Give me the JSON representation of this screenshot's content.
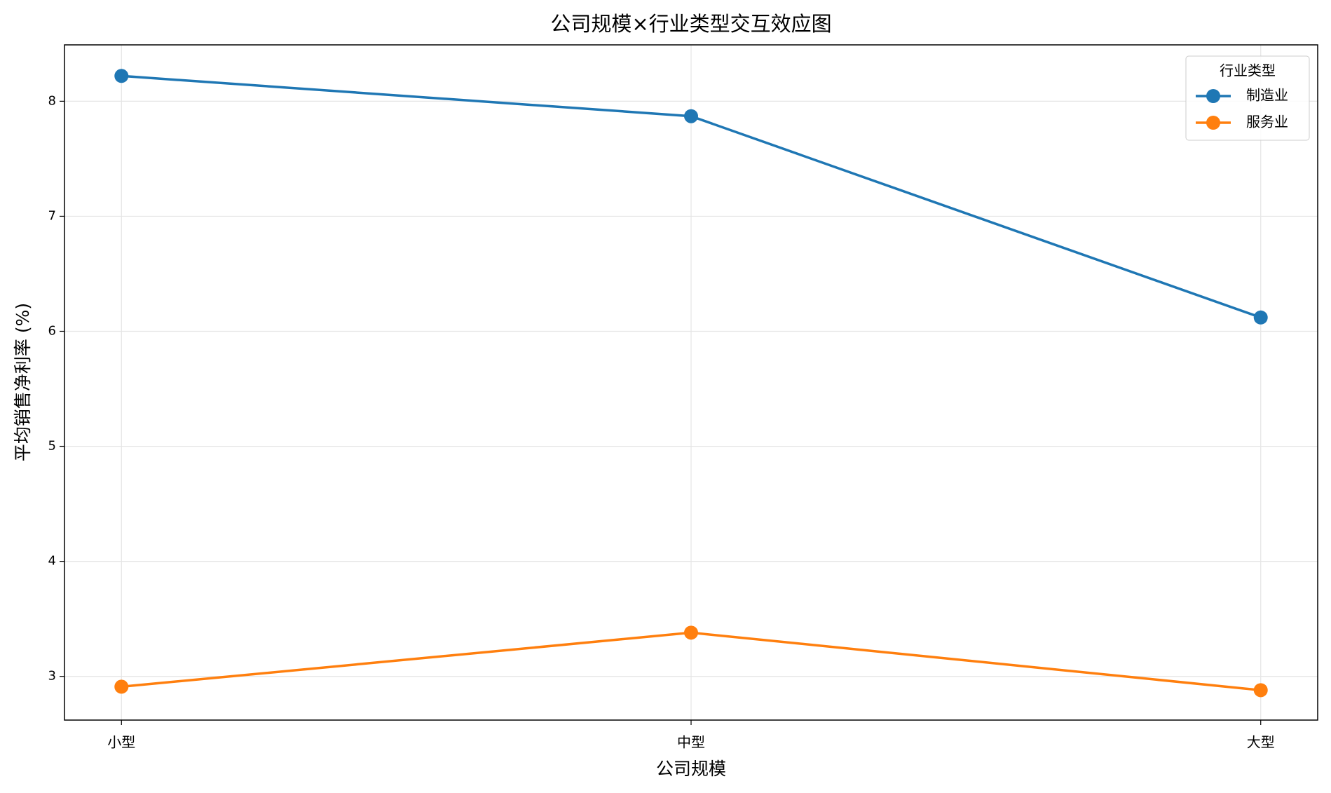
{
  "chart_data": {
    "type": "line",
    "title": "公司规模×行业类型交互效应图",
    "x_label": "公司规模",
    "y_label": "平均销售净利率 (%)",
    "categories": [
      "小型",
      "中型",
      "大型"
    ],
    "series": [
      {
        "name": "制造业",
        "color": "#1f77b4",
        "values": [
          8.22,
          7.87,
          6.12
        ]
      },
      {
        "name": "服务业",
        "color": "#ff7f0e",
        "values": [
          2.91,
          3.38,
          2.88
        ]
      }
    ],
    "legend_title": "行业类型",
    "legend": "upper right",
    "ylim": [
      2.62,
      8.49
    ],
    "yticks": [
      3,
      4,
      5,
      6,
      7,
      8
    ],
    "grid": true
  }
}
